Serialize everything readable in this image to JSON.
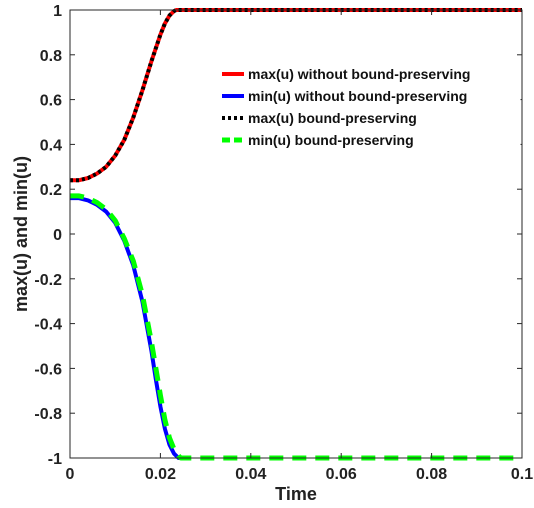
{
  "chart_data": {
    "type": "line",
    "title": "",
    "xlabel": "Time",
    "ylabel": "max(u) and min(u)",
    "xlim": [
      0,
      0.1
    ],
    "ylim": [
      -1,
      1
    ],
    "xticks": [
      0,
      0.02,
      0.04,
      0.06,
      0.08,
      0.1
    ],
    "xtick_labels": [
      "0",
      "0.02",
      "0.04",
      "0.06",
      "0.08",
      "0.1"
    ],
    "yticks": [
      -1,
      -0.8,
      -0.6,
      -0.4,
      -0.2,
      0,
      0.2,
      0.4,
      0.6,
      0.8,
      1
    ],
    "ytick_labels": [
      "-1",
      "-0.8",
      "-0.6",
      "-0.4",
      "-0.2",
      "0",
      "0.2",
      "0.4",
      "0.6",
      "0.8",
      "1"
    ],
    "grid": false,
    "legend_position": "top-right",
    "series": [
      {
        "name": "max(u) without bound-preserving",
        "color": "#ff0000",
        "style": "solid",
        "x": [
          0,
          0.002,
          0.004,
          0.006,
          0.008,
          0.01,
          0.012,
          0.014,
          0.016,
          0.018,
          0.02,
          0.021,
          0.022,
          0.023,
          0.0235,
          0.024,
          0.025,
          0.03,
          0.04,
          0.05,
          0.06,
          0.07,
          0.08,
          0.09,
          0.1
        ],
        "y": [
          0.24,
          0.24,
          0.25,
          0.27,
          0.3,
          0.35,
          0.42,
          0.52,
          0.64,
          0.77,
          0.89,
          0.94,
          0.975,
          0.995,
          1.0,
          1.0,
          1.0,
          1.0,
          1.0,
          1.0,
          1.0,
          1.0,
          1.0,
          1.0,
          1.0
        ]
      },
      {
        "name": "min(u)  without bound-preserving",
        "color": "#0000ff",
        "style": "solid",
        "x": [
          0,
          0.002,
          0.004,
          0.006,
          0.008,
          0.01,
          0.012,
          0.014,
          0.016,
          0.018,
          0.019,
          0.02,
          0.021,
          0.022,
          0.023,
          0.0235,
          0.024,
          0.0245
        ],
        "y": [
          0.16,
          0.16,
          0.15,
          0.13,
          0.1,
          0.05,
          -0.03,
          -0.14,
          -0.3,
          -0.52,
          -0.65,
          -0.77,
          -0.87,
          -0.94,
          -0.98,
          -0.99,
          -1.0,
          -1.0
        ]
      },
      {
        "name": "max(u) bound-preserving",
        "color": "#000000",
        "style": "dotted",
        "x": [
          0,
          0.002,
          0.004,
          0.006,
          0.008,
          0.01,
          0.012,
          0.014,
          0.016,
          0.018,
          0.02,
          0.021,
          0.022,
          0.023,
          0.0235,
          0.024,
          0.025,
          0.03,
          0.04,
          0.05,
          0.06,
          0.07,
          0.08,
          0.09,
          0.1
        ],
        "y": [
          0.24,
          0.24,
          0.25,
          0.27,
          0.3,
          0.35,
          0.42,
          0.52,
          0.64,
          0.77,
          0.89,
          0.94,
          0.975,
          0.995,
          1.0,
          1.0,
          1.0,
          1.0,
          1.0,
          1.0,
          1.0,
          1.0,
          1.0,
          1.0,
          1.0
        ]
      },
      {
        "name": "min(u)  bound-preserving",
        "color": "#00ff00",
        "style": "dashed",
        "x": [
          0,
          0.002,
          0.004,
          0.006,
          0.008,
          0.01,
          0.012,
          0.014,
          0.016,
          0.018,
          0.019,
          0.02,
          0.021,
          0.022,
          0.023,
          0.024,
          0.0245,
          0.025,
          0.03,
          0.04,
          0.05,
          0.06,
          0.07,
          0.08,
          0.09,
          0.1
        ],
        "y": [
          0.17,
          0.17,
          0.16,
          0.14,
          0.11,
          0.06,
          -0.02,
          -0.12,
          -0.27,
          -0.48,
          -0.6,
          -0.72,
          -0.83,
          -0.91,
          -0.96,
          -0.99,
          -1.0,
          -1.0,
          -1.0,
          -1.0,
          -1.0,
          -1.0,
          -1.0,
          -1.0,
          -1.0,
          -1.0
        ]
      }
    ]
  }
}
